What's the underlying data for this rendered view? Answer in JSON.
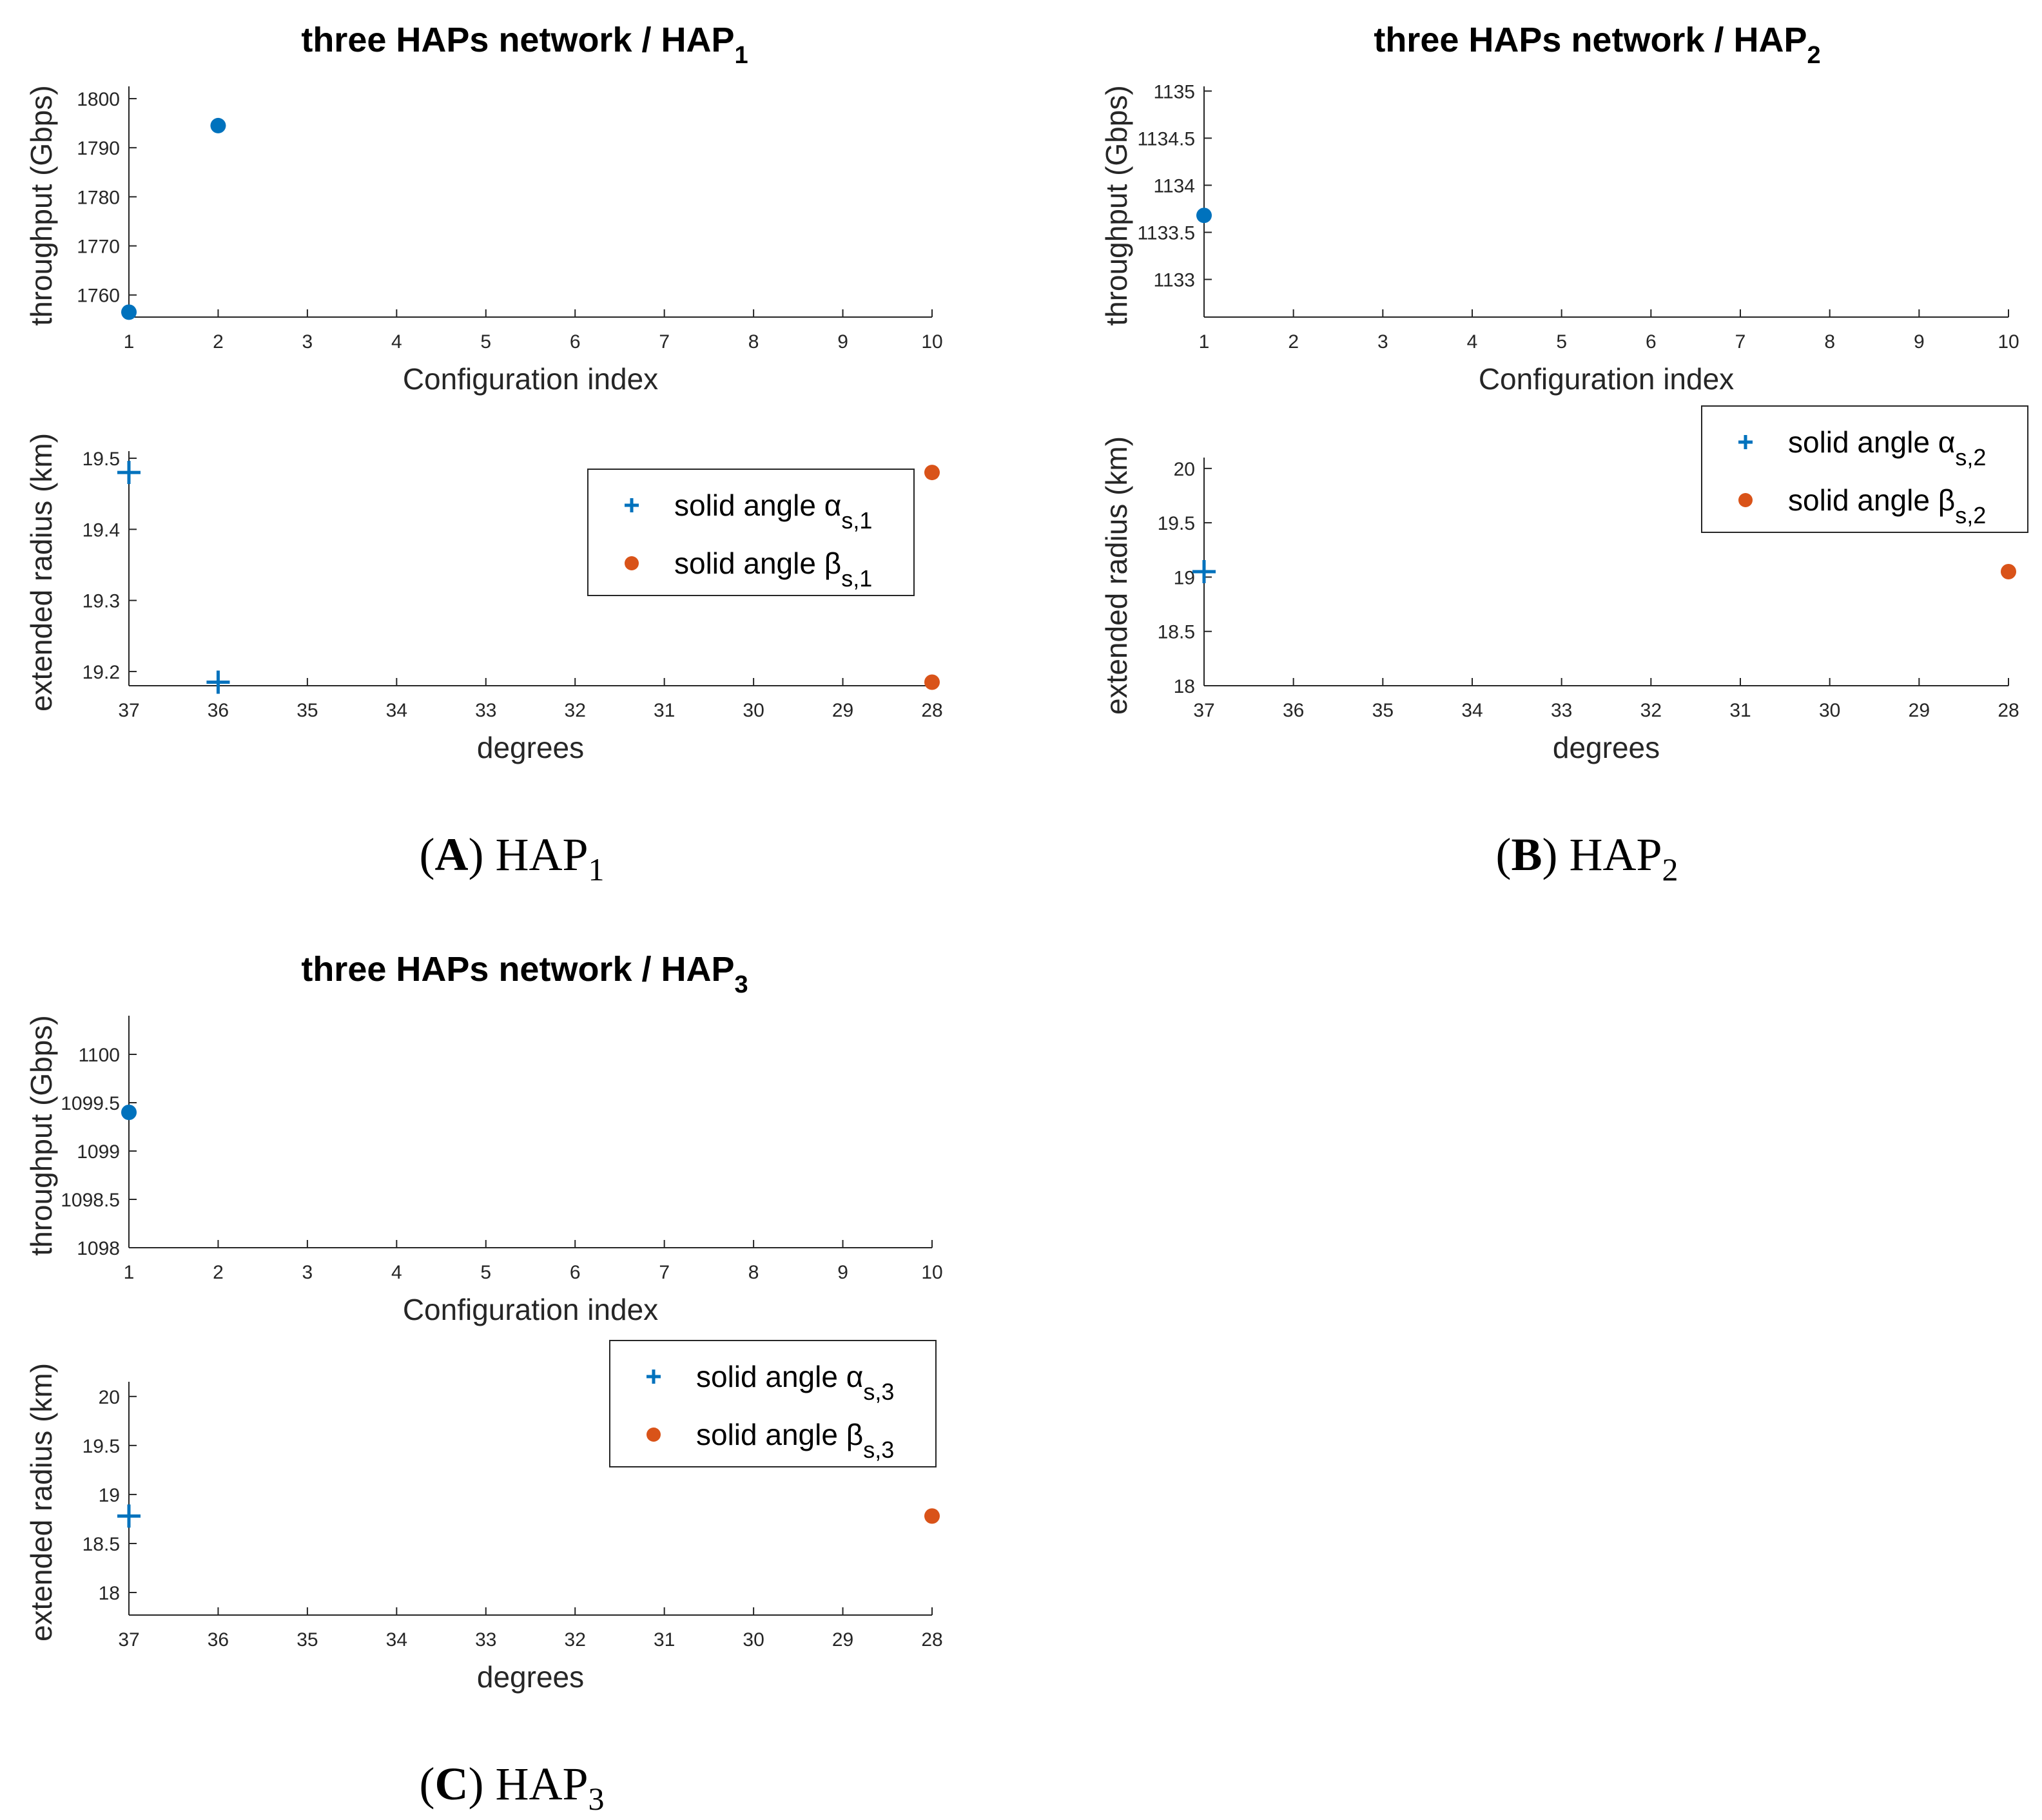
{
  "figure": {
    "panels": [
      {
        "caption": {
          "letter": "A",
          "prefix": "HAP",
          "index": "1"
        },
        "title": {
          "text": "three HAPs network / HAP",
          "sub": "1"
        },
        "colors": {
          "alpha": "#0072BD",
          "beta": "#D95319",
          "throughput": "#0072BD"
        },
        "top": {
          "xlabel": "Configuration index",
          "ylabel": "throughput (Gbps)",
          "xticks": [
            "1",
            "2",
            "3",
            "4",
            "5",
            "6",
            "7",
            "8",
            "9",
            "10"
          ],
          "yticks": [
            "1760",
            "1770",
            "1780",
            "1790",
            "1800"
          ]
        },
        "bottom": {
          "xlabel": "degrees",
          "ylabel": "extended radius (km)",
          "xticks": [
            "37",
            "36",
            "35",
            "34",
            "33",
            "32",
            "31",
            "30",
            "29",
            "28"
          ],
          "yticks": [
            "19.2",
            "19.3",
            "19.4",
            "19.5"
          ],
          "legend": [
            {
              "prefix": "solid angle ",
              "greek": "α",
              "sub": "s,1"
            },
            {
              "prefix": "solid angle ",
              "greek": "β",
              "sub": "s,1"
            }
          ]
        }
      },
      {
        "caption": {
          "letter": "B",
          "prefix": "HAP",
          "index": "2"
        },
        "title": {
          "text": "three HAPs network / HAP",
          "sub": "2"
        },
        "colors": {
          "alpha": "#0072BD",
          "beta": "#D95319",
          "throughput": "#0072BD"
        },
        "top": {
          "xlabel": "Configuration index",
          "ylabel": "throughput (Gbps)",
          "xticks": [
            "1",
            "2",
            "3",
            "4",
            "5",
            "6",
            "7",
            "8",
            "9",
            "10"
          ],
          "yticks": [
            "1133",
            "1133.5",
            "1134",
            "1134.5",
            "1135"
          ]
        },
        "bottom": {
          "xlabel": "degrees",
          "ylabel": "extended radius (km)",
          "xticks": [
            "37",
            "36",
            "35",
            "34",
            "33",
            "32",
            "31",
            "30",
            "29",
            "28"
          ],
          "yticks": [
            "18",
            "18.5",
            "19",
            "19.5",
            "20"
          ],
          "legend": [
            {
              "prefix": "solid angle ",
              "greek": "α",
              "sub": "s,2"
            },
            {
              "prefix": "solid angle ",
              "greek": "β",
              "sub": "s,2"
            }
          ]
        }
      },
      {
        "caption": {
          "letter": "C",
          "prefix": "HAP",
          "index": "3"
        },
        "title": {
          "text": "three HAPs network / HAP",
          "sub": "3"
        },
        "colors": {
          "alpha": "#0072BD",
          "beta": "#D95319",
          "throughput": "#0072BD"
        },
        "top": {
          "xlabel": "Configuration index",
          "ylabel": "throughput (Gbps)",
          "xticks": [
            "1",
            "2",
            "3",
            "4",
            "5",
            "6",
            "7",
            "8",
            "9",
            "10"
          ],
          "yticks": [
            "1098",
            "1098.5",
            "1099",
            "1099.5",
            "1100"
          ]
        },
        "bottom": {
          "xlabel": "degrees",
          "ylabel": "extended radius (km)",
          "xticks": [
            "37",
            "36",
            "35",
            "34",
            "33",
            "32",
            "31",
            "30",
            "29",
            "28"
          ],
          "yticks": [
            "18",
            "18.5",
            "19",
            "19.5",
            "20"
          ],
          "legend": [
            {
              "prefix": "solid angle ",
              "greek": "α",
              "sub": "s,3"
            },
            {
              "prefix": "solid angle ",
              "greek": "β",
              "sub": "s,3"
            }
          ]
        }
      }
    ]
  },
  "chart_data": [
    {
      "type": "scatter",
      "title": "three HAPs network / HAP1 (throughput)",
      "xlabel": "Configuration index",
      "ylabel": "throughput (Gbps)",
      "xlim": [
        1,
        10
      ],
      "ylim": [
        1755.5,
        1802.5
      ],
      "series": [
        {
          "name": "throughput",
          "x": [
            1,
            2
          ],
          "y": [
            1756.5,
            1794.5
          ]
        }
      ]
    },
    {
      "type": "scatter",
      "title": "three HAPs network / HAP1 (extended radius)",
      "xlabel": "degrees",
      "ylabel": "extended radius (km)",
      "xlim": [
        37,
        28
      ],
      "ylim": [
        19.18,
        19.51
      ],
      "series": [
        {
          "name": "solid angle αs,1",
          "marker": "+",
          "x": [
            37,
            36
          ],
          "y": [
            19.48,
            19.185
          ]
        },
        {
          "name": "solid angle βs,1",
          "marker": "o",
          "x": [
            28,
            28
          ],
          "y": [
            19.48,
            19.185
          ]
        }
      ]
    },
    {
      "type": "scatter",
      "title": "three HAPs network / HAP2 (throughput)",
      "xlabel": "Configuration index",
      "ylabel": "throughput (Gbps)",
      "xlim": [
        1,
        10
      ],
      "ylim": [
        1132.6,
        1135.05
      ],
      "series": [
        {
          "name": "throughput",
          "x": [
            1
          ],
          "y": [
            1133.68
          ]
        }
      ]
    },
    {
      "type": "scatter",
      "title": "three HAPs network / HAP2 (extended radius)",
      "xlabel": "degrees",
      "ylabel": "extended radius (km)",
      "xlim": [
        37,
        28
      ],
      "ylim": [
        18,
        20.1
      ],
      "series": [
        {
          "name": "solid angle αs,2",
          "marker": "+",
          "x": [
            37
          ],
          "y": [
            19.05
          ]
        },
        {
          "name": "solid angle βs,2",
          "marker": "o",
          "x": [
            28
          ],
          "y": [
            19.05
          ]
        }
      ]
    },
    {
      "type": "scatter",
      "title": "three HAPs network / HAP3 (throughput)",
      "xlabel": "Configuration index",
      "ylabel": "throughput (Gbps)",
      "xlim": [
        1,
        10
      ],
      "ylim": [
        1098,
        1100.4
      ],
      "series": [
        {
          "name": "throughput",
          "x": [
            1
          ],
          "y": [
            1099.4
          ]
        }
      ]
    },
    {
      "type": "scatter",
      "title": "three HAPs network / HAP3 (extended radius)",
      "xlabel": "degrees",
      "ylabel": "extended radius (km)",
      "xlim": [
        37,
        28
      ],
      "ylim": [
        17.77,
        20.15
      ],
      "series": [
        {
          "name": "solid angle αs,3",
          "marker": "+",
          "x": [
            37
          ],
          "y": [
            18.78
          ]
        },
        {
          "name": "solid angle βs,3",
          "marker": "o",
          "x": [
            28
          ],
          "y": [
            18.78
          ]
        }
      ]
    }
  ]
}
